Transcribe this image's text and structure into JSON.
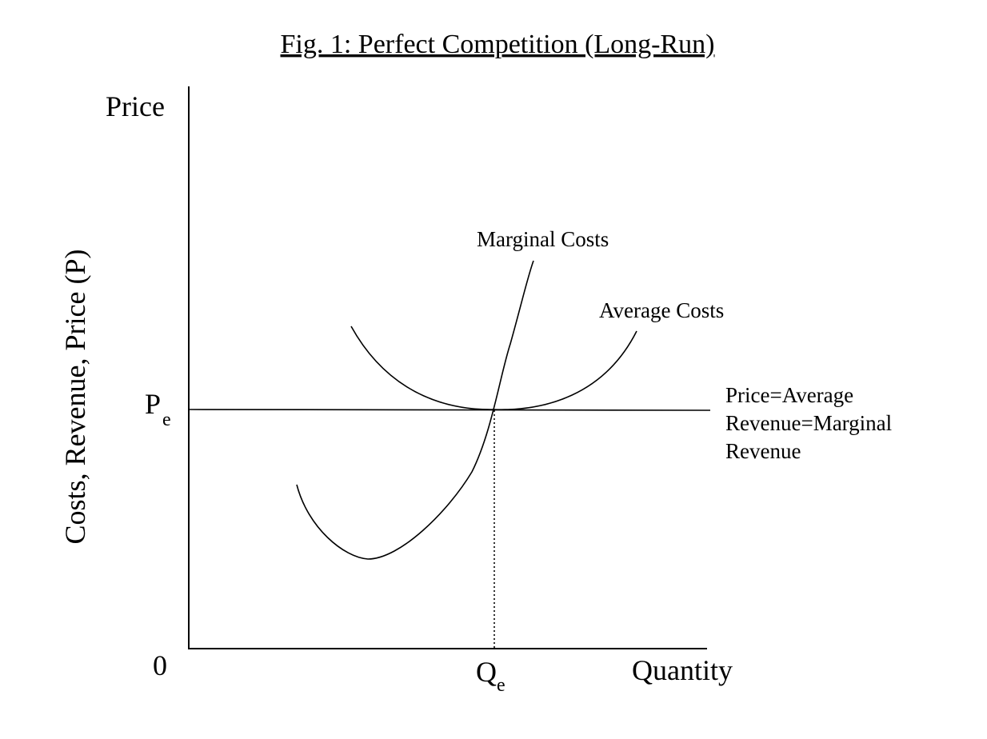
{
  "title": "Fig. 1: Perfect Competition (Long-Run)",
  "y_axis_top_label": "Price",
  "y_axis_label": "Costs, Revenue, Price (P)",
  "x_axis_label": "Quantity",
  "origin_label": "0",
  "price_marker": {
    "main": "P",
    "sub": "e"
  },
  "quantity_marker": {
    "main": "Q",
    "sub": "e"
  },
  "curves": {
    "marginal_costs": "Marginal Costs",
    "average_costs": "Average Costs",
    "price_line": [
      "Price=Average",
      "Revenue=Marginal",
      "Revenue"
    ]
  }
}
